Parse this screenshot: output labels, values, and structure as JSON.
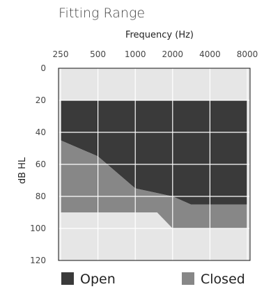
{
  "colors": {
    "background": "#e6e6e6",
    "open": "#3a3a3a",
    "closed": "#878787",
    "grid": "#ffffff",
    "frame": "#111111"
  },
  "chart_data": {
    "type": "area",
    "title": "Fitting Range",
    "xlabel": "Frequency (Hz)",
    "ylabel": "dB HL",
    "x_tick_labels": [
      "250",
      "500",
      "1000",
      "2000",
      "4000",
      "8000"
    ],
    "y_tick_labels": [
      "0",
      "20",
      "40",
      "60",
      "80",
      "100",
      "120"
    ],
    "x_scale": "log",
    "y_reversed": true,
    "ylim": [
      0,
      120
    ],
    "grid": true,
    "legend_position": "bottom",
    "series": [
      {
        "name": "Open",
        "color": "#3a3a3a",
        "upper": [
          {
            "x": 250,
            "y": 20
          },
          {
            "x": 8000,
            "y": 20
          }
        ],
        "lower": [
          {
            "x": 250,
            "y": 45
          },
          {
            "x": 500,
            "y": 55
          },
          {
            "x": 1000,
            "y": 75
          },
          {
            "x": 2000,
            "y": 80
          },
          {
            "x": 2800,
            "y": 85
          },
          {
            "x": 8000,
            "y": 85
          }
        ]
      },
      {
        "name": "Closed",
        "color": "#878787",
        "upper": [
          {
            "x": 250,
            "y": 45
          },
          {
            "x": 500,
            "y": 55
          },
          {
            "x": 1000,
            "y": 75
          },
          {
            "x": 2000,
            "y": 80
          },
          {
            "x": 2800,
            "y": 85
          },
          {
            "x": 8000,
            "y": 85
          }
        ],
        "lower": [
          {
            "x": 250,
            "y": 90
          },
          {
            "x": 1500,
            "y": 90
          },
          {
            "x": 2000,
            "y": 100
          },
          {
            "x": 8000,
            "y": 100
          }
        ]
      }
    ]
  }
}
